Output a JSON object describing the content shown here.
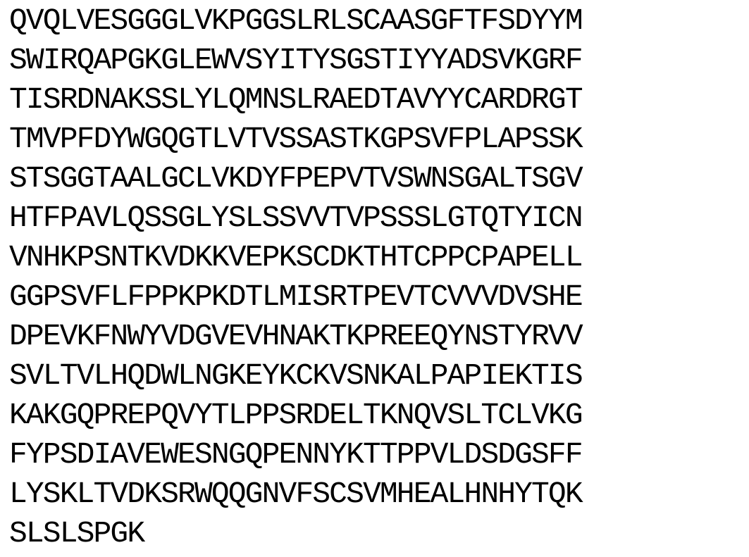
{
  "document": {
    "text_color": "#000000",
    "background_color": "#ffffff",
    "lines": [
      "QVQLVESGGGLVKPGGSLRLSCAASGFTFSDYYM",
      "SWIRQAPGKGLEWVSYITYSGSTIYYADSVKGRF",
      "TISRDNAKSSLYLQMNSLRAEDTAVYYCARDRGT",
      "TMVPFDYWGQGTLVTVSSASTKGPSVFPLAPSSK",
      "STSGGTAALGCLVKDYFPEPVTVSWNSGALTSGV",
      "HTFPAVLQSSGLYSLSSVVTVPSSSLGTQTYICN",
      "VNHKPSNTKVDKKVEPKSCDKTHTCPPCPAPELL",
      "GGPSVFLFPPKPKDTLMISRTPEVTCVVVDVSHE",
      "DPEVKFNWYVDGVEVHNAKTKPREEQYNSTYRVV",
      "SVLTVLHQDWLNGKEYKCKVSNKALPAPIEKTIS",
      "KAKGQPREPQVYTLPPSRDELTKNQVSLTCLVKG",
      "FYPSDIAVEWESNGQPENNYKTTPPVLDSDGSFF",
      "LYSKLTVDKSRWQQGNVFSCSVMHEALHNHYTQK",
      "SLSLSPGK"
    ]
  }
}
